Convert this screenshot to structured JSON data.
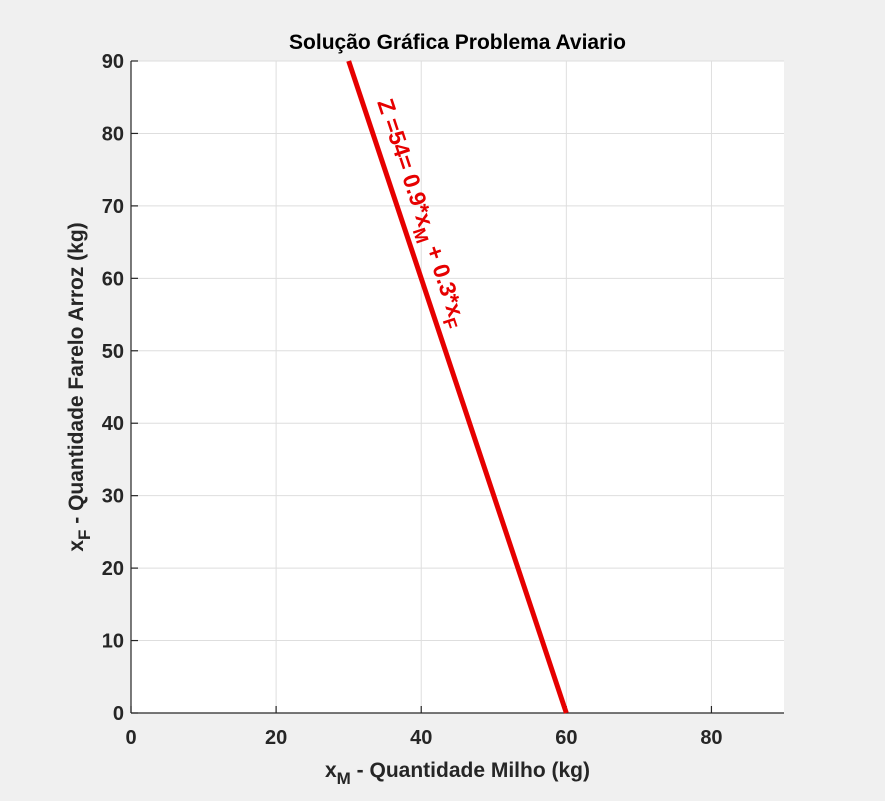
{
  "chart_data": {
    "type": "line",
    "title": "Solução Gráfica Problema Aviario",
    "xlabel": {
      "main": "x",
      "sub": "M",
      "rest": " - Quantidade Milho (kg)"
    },
    "ylabel": {
      "main": "x",
      "sub": "F",
      "rest": " - Quantidade Farelo Arroz (kg)"
    },
    "xlim": [
      0,
      90
    ],
    "ylim": [
      0,
      90
    ],
    "xticks": [
      0,
      20,
      40,
      60,
      80
    ],
    "yticks": [
      0,
      10,
      20,
      30,
      40,
      50,
      60,
      70,
      80,
      90
    ],
    "grid": true,
    "series": [
      {
        "x": [
          30,
          60
        ],
        "y": [
          90,
          0
        ],
        "color": "#e60000"
      }
    ],
    "annotation": {
      "parts": [
        {
          "text": "Z =54= 0.9*x"
        },
        {
          "text": "M",
          "sub": true
        },
        {
          "text": " + 0.3*x"
        },
        {
          "text": "F",
          "sub": true
        }
      ],
      "color": "#e60000"
    }
  }
}
